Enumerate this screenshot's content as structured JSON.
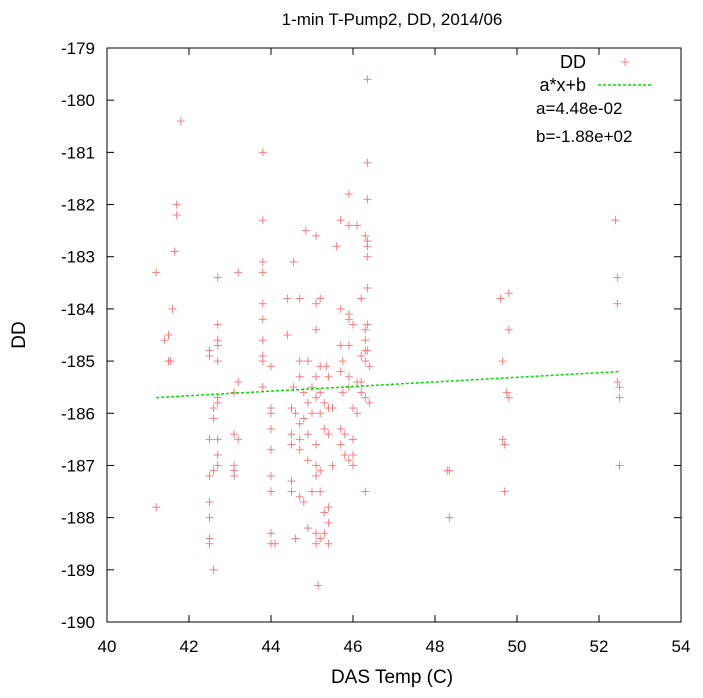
{
  "chart_data": {
    "type": "scatter",
    "title": "1-min T-Pump2, DD, 2014/06",
    "xlabel": "DAS Temp (C)",
    "ylabel": "DD",
    "xlim": [
      40,
      54
    ],
    "ylim": [
      -190,
      -179
    ],
    "x_ticks": [
      40,
      42,
      44,
      46,
      48,
      50,
      52,
      54
    ],
    "y_ticks": [
      -179,
      -180,
      -181,
      -182,
      -183,
      -184,
      -185,
      -186,
      -187,
      -188,
      -189,
      -190
    ],
    "grid": false,
    "legend_position": "top-right",
    "series": [
      {
        "name": "DD",
        "marker": "+",
        "color": "#f08080",
        "points": [
          [
            41.2,
            -183.3
          ],
          [
            41.2,
            -187.8
          ],
          [
            41.4,
            -184.6
          ],
          [
            41.5,
            -184.5
          ],
          [
            41.5,
            -185.0
          ],
          [
            41.55,
            -185.0
          ],
          [
            41.6,
            -184.0
          ],
          [
            41.65,
            -182.9
          ],
          [
            41.7,
            -182.2
          ],
          [
            41.7,
            -182.0
          ],
          [
            41.8,
            -180.4
          ],
          [
            42.5,
            -184.8
          ],
          [
            42.5,
            -184.9
          ],
          [
            42.5,
            -186.5
          ],
          [
            42.5,
            -187.2
          ],
          [
            42.5,
            -187.7
          ],
          [
            42.5,
            -188.0
          ],
          [
            42.5,
            -188.4
          ],
          [
            42.5,
            -188.5
          ],
          [
            42.6,
            -185.9
          ],
          [
            42.6,
            -186.1
          ],
          [
            42.6,
            -187.1
          ],
          [
            42.6,
            -189.0
          ],
          [
            42.7,
            -183.4
          ],
          [
            42.7,
            -184.3
          ],
          [
            42.7,
            -184.6
          ],
          [
            42.7,
            -184.7
          ],
          [
            42.7,
            -185.0
          ],
          [
            42.7,
            -185.7
          ],
          [
            42.7,
            -185.8
          ],
          [
            42.7,
            -186.5
          ],
          [
            42.7,
            -186.8
          ],
          [
            42.7,
            -187.0
          ],
          [
            43.1,
            -185.6
          ],
          [
            43.1,
            -186.4
          ],
          [
            43.1,
            -187.0
          ],
          [
            43.1,
            -187.1
          ],
          [
            43.1,
            -187.2
          ],
          [
            43.2,
            -183.3
          ],
          [
            43.2,
            -185.4
          ],
          [
            43.2,
            -186.5
          ],
          [
            43.8,
            -181.0
          ],
          [
            43.8,
            -182.3
          ],
          [
            43.8,
            -183.1
          ],
          [
            43.8,
            -183.3
          ],
          [
            43.8,
            -183.9
          ],
          [
            43.8,
            -184.2
          ],
          [
            43.8,
            -184.6
          ],
          [
            43.8,
            -184.9
          ],
          [
            43.8,
            -185.0
          ],
          [
            43.8,
            -185.5
          ],
          [
            44.0,
            -185.1
          ],
          [
            44.0,
            -185.9
          ],
          [
            44.0,
            -186.0
          ],
          [
            44.0,
            -186.3
          ],
          [
            44.0,
            -186.7
          ],
          [
            44.0,
            -187.2
          ],
          [
            44.0,
            -187.5
          ],
          [
            44.0,
            -188.3
          ],
          [
            44.0,
            -188.5
          ],
          [
            44.1,
            -188.5
          ],
          [
            44.4,
            -183.8
          ],
          [
            44.4,
            -184.5
          ],
          [
            44.5,
            -185.9
          ],
          [
            44.5,
            -186.4
          ],
          [
            44.5,
            -186.6
          ],
          [
            44.5,
            -187.3
          ],
          [
            44.5,
            -187.5
          ],
          [
            44.55,
            -183.1
          ],
          [
            44.55,
            -185.5
          ],
          [
            44.6,
            -186.0
          ],
          [
            44.6,
            -188.4
          ],
          [
            44.7,
            -183.8
          ],
          [
            44.7,
            -185.0
          ],
          [
            44.7,
            -185.3
          ],
          [
            44.7,
            -186.2
          ],
          [
            44.7,
            -186.5
          ],
          [
            44.7,
            -186.7
          ],
          [
            44.7,
            -187.6
          ],
          [
            44.8,
            -185.6
          ],
          [
            44.8,
            -186.1
          ],
          [
            44.8,
            -187.7
          ],
          [
            44.85,
            -182.5
          ],
          [
            44.9,
            -185.0
          ],
          [
            44.9,
            -185.8
          ],
          [
            44.9,
            -186.4
          ],
          [
            44.9,
            -186.9
          ],
          [
            44.9,
            -188.2
          ],
          [
            45.0,
            -185.5
          ],
          [
            45.0,
            -186.0
          ],
          [
            45.0,
            -187.5
          ],
          [
            45.1,
            -182.6
          ],
          [
            45.1,
            -183.9
          ],
          [
            45.1,
            -184.4
          ],
          [
            45.1,
            -185.3
          ],
          [
            45.1,
            -185.7
          ],
          [
            45.1,
            -186.6
          ],
          [
            45.1,
            -187.0
          ],
          [
            45.1,
            -187.2
          ],
          [
            45.1,
            -188.3
          ],
          [
            45.1,
            -188.5
          ],
          [
            45.15,
            -189.3
          ],
          [
            45.2,
            -183.8
          ],
          [
            45.2,
            -185.1
          ],
          [
            45.2,
            -185.6
          ],
          [
            45.2,
            -186.0
          ],
          [
            45.2,
            -187.1
          ],
          [
            45.2,
            -187.5
          ],
          [
            45.2,
            -188.4
          ],
          [
            45.3,
            -185.8
          ],
          [
            45.3,
            -186.3
          ],
          [
            45.3,
            -187.9
          ],
          [
            45.3,
            -188.3
          ],
          [
            45.35,
            -185.1
          ],
          [
            45.4,
            -185.3
          ],
          [
            45.4,
            -185.9
          ],
          [
            45.4,
            -186.4
          ],
          [
            45.4,
            -187.8
          ],
          [
            45.4,
            -188.1
          ],
          [
            45.4,
            -188.5
          ],
          [
            45.5,
            -185.9
          ],
          [
            45.5,
            -187.0
          ],
          [
            45.6,
            -182.8
          ],
          [
            45.7,
            -182.3
          ],
          [
            45.7,
            -184.0
          ],
          [
            45.7,
            -184.7
          ],
          [
            45.7,
            -185.2
          ],
          [
            45.7,
            -186.3
          ],
          [
            45.7,
            -186.6
          ],
          [
            45.75,
            -185.0
          ],
          [
            45.75,
            -185.6
          ],
          [
            45.8,
            -186.4
          ],
          [
            45.8,
            -186.8
          ],
          [
            45.9,
            -181.8
          ],
          [
            45.9,
            -182.4
          ],
          [
            45.9,
            -184.1
          ],
          [
            45.9,
            -184.2
          ],
          [
            45.9,
            -184.7
          ],
          [
            45.9,
            -185.3
          ],
          [
            45.9,
            -185.5
          ],
          [
            45.9,
            -186.9
          ],
          [
            46.0,
            -184.3
          ],
          [
            46.0,
            -185.9
          ],
          [
            46.0,
            -186.5
          ],
          [
            46.0,
            -186.8
          ],
          [
            46.0,
            -187.0
          ],
          [
            46.1,
            -182.4
          ],
          [
            46.1,
            -185.4
          ],
          [
            46.1,
            -186.0
          ],
          [
            46.2,
            -183.8
          ],
          [
            46.2,
            -184.9
          ],
          [
            46.2,
            -185.4
          ],
          [
            46.2,
            -185.6
          ],
          [
            46.3,
            -182.6
          ],
          [
            46.3,
            -184.4
          ],
          [
            46.3,
            -184.6
          ],
          [
            46.3,
            -184.8
          ],
          [
            46.3,
            -185.0
          ],
          [
            46.3,
            -185.7
          ],
          [
            46.3,
            -187.5
          ],
          [
            46.35,
            -179.6
          ],
          [
            46.35,
            -181.2
          ],
          [
            46.35,
            -181.9
          ],
          [
            46.35,
            -182.7
          ],
          [
            46.35,
            -182.8
          ],
          [
            46.35,
            -183.0
          ],
          [
            46.35,
            -183.6
          ],
          [
            46.35,
            -184.3
          ],
          [
            46.35,
            -184.8
          ],
          [
            46.4,
            -185.1
          ],
          [
            46.4,
            -185.8
          ],
          [
            48.3,
            -187.1
          ],
          [
            48.35,
            -187.1
          ],
          [
            48.35,
            -188.0
          ],
          [
            49.6,
            -183.8
          ],
          [
            49.65,
            -185.0
          ],
          [
            49.65,
            -186.5
          ],
          [
            49.7,
            -186.6
          ],
          [
            49.7,
            -187.5
          ],
          [
            49.75,
            -185.6
          ],
          [
            49.8,
            -183.7
          ],
          [
            49.8,
            -184.4
          ],
          [
            49.8,
            -185.7
          ],
          [
            52.4,
            -182.3
          ],
          [
            52.45,
            -183.4
          ],
          [
            52.45,
            -183.9
          ],
          [
            52.45,
            -185.4
          ],
          [
            52.5,
            -185.5
          ],
          [
            52.5,
            -185.7
          ],
          [
            52.5,
            -187.0
          ]
        ]
      },
      {
        "name": "a*x+b",
        "type": "line",
        "color": "#00dd00",
        "style": "dashed",
        "x": [
          41.2,
          52.5
        ],
        "y": [
          -185.7,
          -185.2
        ]
      }
    ],
    "annotations": [
      "a=4.48e-02",
      "b=-1.88e+02"
    ]
  }
}
